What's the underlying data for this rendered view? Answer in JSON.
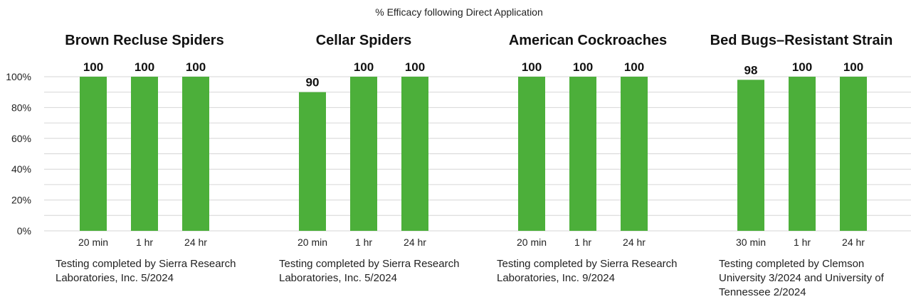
{
  "chart_data": {
    "type": "bar",
    "title": "% Efficacy following Direct Application",
    "ylim": [
      0,
      100
    ],
    "y_ticks": [
      "0%",
      "20%",
      "40%",
      "60%",
      "80%",
      "100%"
    ],
    "grid": true,
    "bar_color": "#4caf3a",
    "panels": [
      {
        "title": "Brown Recluse Spiders",
        "categories": [
          "20 min",
          "1 hr",
          "24 hr"
        ],
        "values": [
          100,
          100,
          100
        ],
        "labels": [
          "100",
          "100",
          "100"
        ],
        "note": "Testing completed by Sierra Research Laboratories, Inc. 5/2024"
      },
      {
        "title": "Cellar Spiders",
        "categories": [
          "20 min",
          "1 hr",
          "24 hr"
        ],
        "values": [
          90,
          100,
          100
        ],
        "labels": [
          "90",
          "100",
          "100"
        ],
        "note": "Testing completed by Sierra Research Laboratories, Inc. 5/2024"
      },
      {
        "title": "American Cockroaches",
        "categories": [
          "20 min",
          "1 hr",
          "24 hr"
        ],
        "values": [
          100,
          100,
          100
        ],
        "labels": [
          "100",
          "100",
          "100"
        ],
        "note": "Testing completed by Sierra Research Laboratories, Inc. 9/2024"
      },
      {
        "title": "Bed Bugs–Resistant Strain",
        "categories": [
          "30 min",
          "1 hr",
          "24 hr"
        ],
        "values": [
          98,
          100,
          100
        ],
        "labels": [
          "98",
          "100",
          "100"
        ],
        "note": "Testing completed by Clemson University 3/2024 and University of Tennessee 2/2024"
      }
    ]
  }
}
